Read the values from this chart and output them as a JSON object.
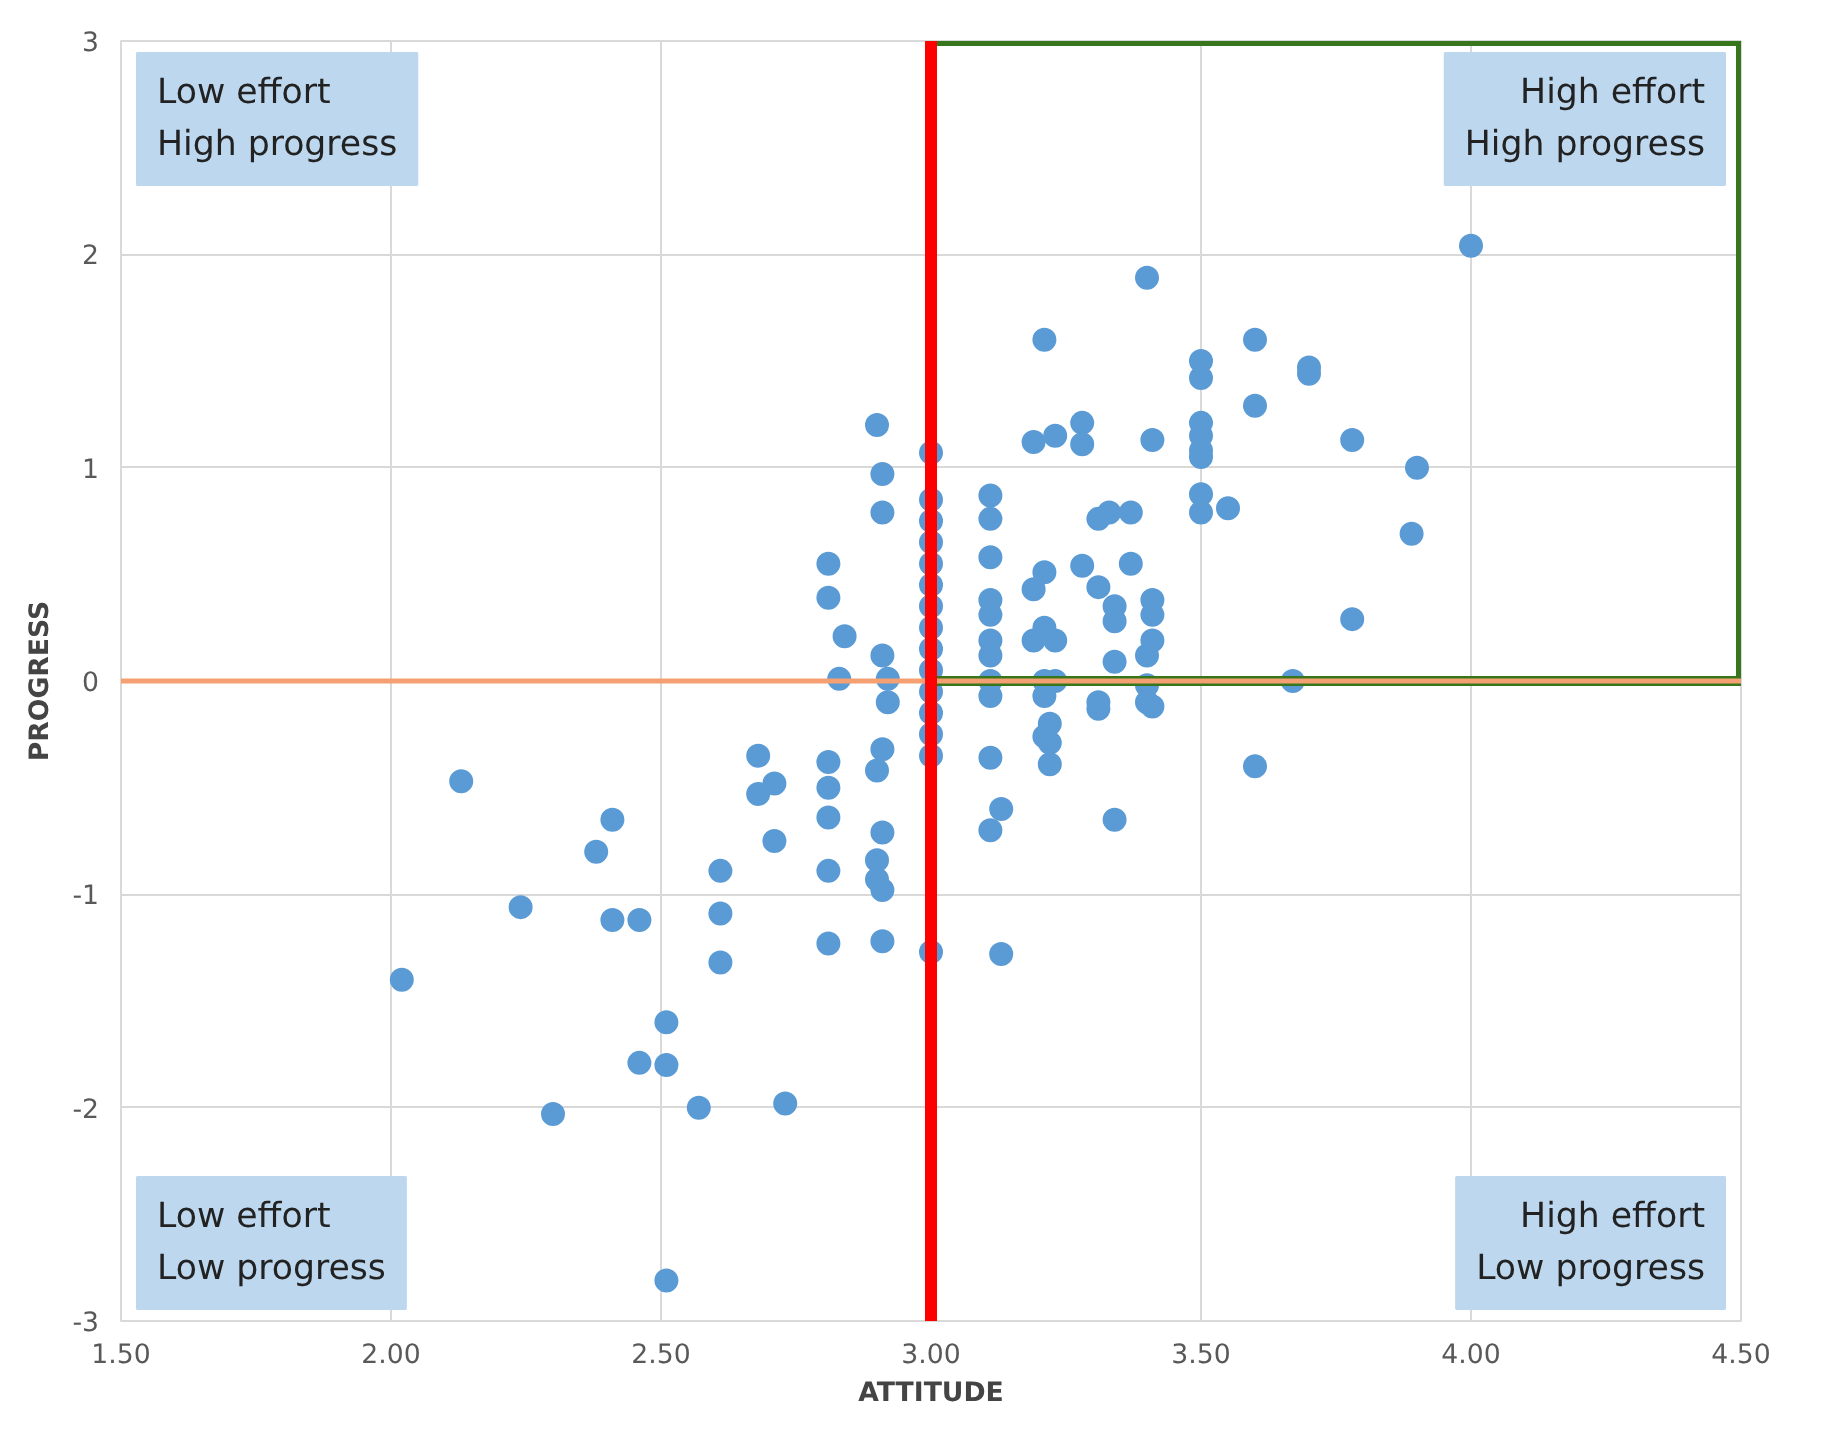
{
  "chart_data": {
    "type": "scatter",
    "xlabel": "ATTITUDE",
    "ylabel": "PROGRESS",
    "xlim": [
      1.5,
      4.5
    ],
    "ylim": [
      -3,
      3
    ],
    "xticks": [
      {
        "value": 1.5,
        "label": "1.50"
      },
      {
        "value": 2.0,
        "label": "2.00"
      },
      {
        "value": 2.5,
        "label": "2.50"
      },
      {
        "value": 3.0,
        "label": "3.00"
      },
      {
        "value": 3.5,
        "label": "3.50"
      },
      {
        "value": 4.0,
        "label": "4.00"
      },
      {
        "value": 4.5,
        "label": "4.50"
      }
    ],
    "yticks": [
      -3,
      -2,
      -1,
      0,
      1,
      2,
      3
    ],
    "grid": true,
    "marker": "circle",
    "series": [
      {
        "color": "#5b9bd5",
        "x": [
          2.02,
          2.13,
          2.24,
          2.3,
          2.38,
          2.41,
          2.41,
          2.46,
          2.46,
          2.51,
          2.51,
          2.51,
          2.57,
          2.61,
          2.61,
          2.61,
          2.68,
          2.68,
          2.71,
          2.71,
          2.73,
          2.81,
          2.81,
          2.81,
          2.81,
          2.81,
          2.81,
          2.81,
          2.83,
          2.84,
          2.9,
          2.91,
          2.91,
          2.91,
          2.92,
          2.92,
          2.91,
          2.9,
          2.91,
          2.9,
          2.9,
          2.91,
          2.91,
          3.0,
          3.0,
          3.0,
          3.0,
          3.0,
          3.0,
          3.0,
          3.0,
          3.0,
          3.0,
          3.0,
          3.0,
          3.0,
          3.0,
          3.0,
          3.11,
          3.11,
          3.11,
          3.11,
          3.11,
          3.11,
          3.11,
          3.11,
          3.11,
          3.13,
          3.11,
          3.11,
          3.13,
          3.19,
          3.21,
          3.19,
          3.21,
          3.23,
          3.21,
          3.23,
          3.21,
          3.22,
          3.22,
          3.22,
          3.21,
          3.21,
          3.19,
          3.23,
          3.28,
          3.28,
          3.31,
          3.31,
          3.28,
          3.31,
          3.31,
          3.33,
          3.34,
          3.34,
          3.34,
          3.34,
          3.37,
          3.37,
          3.4,
          3.41,
          3.41,
          3.41,
          3.41,
          3.4,
          3.4,
          3.41,
          3.4,
          3.5,
          3.5,
          3.5,
          3.5,
          3.5,
          3.5,
          3.5,
          3.5,
          3.55,
          3.6,
          3.6,
          3.6,
          3.67,
          3.7,
          3.7,
          3.78,
          3.78,
          3.89,
          3.9,
          4.0
        ],
        "values": [
          -1.4,
          -0.47,
          -1.06,
          -2.03,
          -0.8,
          -0.65,
          -1.12,
          -1.12,
          -1.79,
          -1.6,
          -1.8,
          -2.81,
          -2.0,
          -0.89,
          -1.09,
          -1.32,
          -0.35,
          -0.53,
          -0.48,
          -0.75,
          -1.98,
          0.55,
          0.39,
          -0.38,
          -0.5,
          -0.64,
          -0.89,
          -1.23,
          0.01,
          0.21,
          1.2,
          0.97,
          0.79,
          0.12,
          0.01,
          -0.1,
          -0.32,
          -0.42,
          -0.71,
          -0.84,
          -0.93,
          -0.98,
          -1.22,
          1.07,
          0.85,
          0.75,
          0.65,
          0.55,
          0.45,
          0.35,
          0.25,
          0.15,
          0.05,
          -0.05,
          -0.15,
          -0.25,
          -0.35,
          -1.27,
          0.87,
          0.76,
          0.58,
          0.38,
          0.31,
          0.19,
          0.12,
          0.0,
          -0.07,
          -0.6,
          -0.36,
          -0.7,
          -1.28,
          1.12,
          1.6,
          0.43,
          0.51,
          0.19,
          0.25,
          0.0,
          -0.07,
          -0.2,
          -0.29,
          -0.39,
          0.0,
          -0.26,
          0.19,
          1.15,
          1.21,
          1.11,
          0.76,
          0.44,
          0.54,
          -0.13,
          -0.1,
          0.79,
          0.35,
          0.28,
          0.09,
          -0.65,
          0.79,
          0.55,
          1.89,
          1.13,
          0.38,
          0.31,
          0.19,
          0.12,
          -0.02,
          -0.12,
          -0.1,
          1.5,
          1.42,
          1.21,
          1.15,
          1.08,
          1.05,
          0.875,
          0.79,
          0.81,
          1.6,
          1.29,
          -0.4,
          0.0,
          1.47,
          1.44,
          1.13,
          0.29,
          0.69,
          1.0,
          2.04
        ]
      }
    ],
    "ref_lines": [
      {
        "axis": "y",
        "value": 0,
        "color": "#f4a072"
      },
      {
        "axis": "x",
        "value": 3.0,
        "color": "#ff0000"
      }
    ],
    "annotations": [
      "Low effort\nHigh progress",
      "High effort\nHigh progress",
      "Low effort\nLow progress",
      "High effort\nLow progress"
    ]
  }
}
